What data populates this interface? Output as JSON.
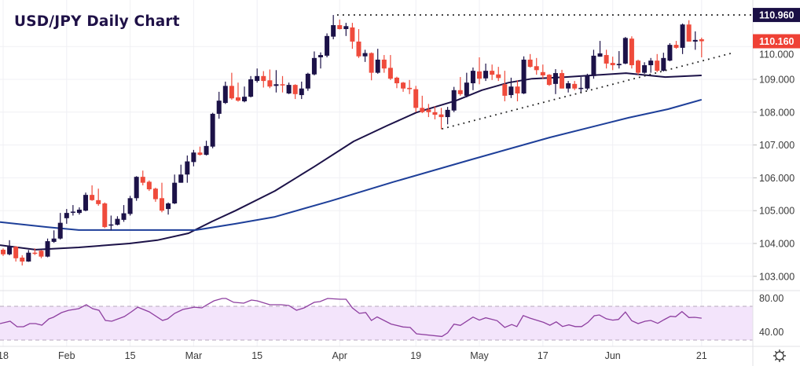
{
  "title": "USD/JPY Daily Chart",
  "colors": {
    "bull": "#1c1248",
    "bear": "#ef4b3c",
    "ma_fast": "#1c1248",
    "ma_slow": "#1e3f99",
    "rsi_line": "#8e3fa0",
    "rsi_fill": "#f3e4fb",
    "rsi_band": "#b7a9bd",
    "high_tag": "#1a0f45",
    "last_tag": "#ef4135",
    "grid": "#f0f0f4"
  },
  "chart_data": {
    "type": "candlestick",
    "title": "USD/JPY Daily Chart",
    "ylim": [
      102.33,
      111.42
    ],
    "y_ticks": [
      "103.000",
      "104.000",
      "105.000",
      "106.000",
      "107.000",
      "108.000",
      "109.000",
      "110.000"
    ],
    "y_tick_values": [
      103,
      104,
      105,
      106,
      107,
      108,
      109,
      110
    ],
    "x_ticks": [
      {
        "label": "18",
        "candle_index": 0
      },
      {
        "label": "Feb",
        "candle_index": 10
      },
      {
        "label": "15",
        "candle_index": 20
      },
      {
        "label": "Mar",
        "candle_index": 30
      },
      {
        "label": "15",
        "candle_index": 40
      },
      {
        "label": "Apr",
        "candle_index": 53
      },
      {
        "label": "19",
        "candle_index": 65
      },
      {
        "label": "May",
        "candle_index": 75
      },
      {
        "label": "17",
        "candle_index": 85
      },
      {
        "label": "Jun",
        "candle_index": 96
      },
      {
        "label": "21",
        "candle_index": 110
      }
    ],
    "ohlc_fields": [
      "open",
      "high",
      "low",
      "close"
    ],
    "candles": [
      [
        103.81,
        103.85,
        103.62,
        103.67
      ],
      [
        103.67,
        104.1,
        103.64,
        103.9
      ],
      [
        103.9,
        103.92,
        103.45,
        103.55
      ],
      [
        103.57,
        103.64,
        103.33,
        103.45
      ],
      [
        103.45,
        103.8,
        103.44,
        103.72
      ],
      [
        103.72,
        103.85,
        103.65,
        103.7
      ],
      [
        103.78,
        103.8,
        103.55,
        103.6
      ],
      [
        103.6,
        104.15,
        103.58,
        104.07
      ],
      [
        104.05,
        104.4,
        104.02,
        104.15
      ],
      [
        104.15,
        104.93,
        104.12,
        104.63
      ],
      [
        104.77,
        105.05,
        104.6,
        104.93
      ],
      [
        104.95,
        105.17,
        104.85,
        104.97
      ],
      [
        104.93,
        105.1,
        104.88,
        105.03
      ],
      [
        105.0,
        105.55,
        104.98,
        105.48
      ],
      [
        105.48,
        105.77,
        105.3,
        105.32
      ],
      [
        105.32,
        105.67,
        105.15,
        105.2
      ],
      [
        105.22,
        105.25,
        104.47,
        104.5
      ],
      [
        104.55,
        104.85,
        104.4,
        104.58
      ],
      [
        104.57,
        104.83,
        104.55,
        104.75
      ],
      [
        104.72,
        105.17,
        104.66,
        104.92
      ],
      [
        104.9,
        105.45,
        104.85,
        105.38
      ],
      [
        105.38,
        106.05,
        105.3,
        106.03
      ],
      [
        106.03,
        106.22,
        105.77,
        105.85
      ],
      [
        105.88,
        105.92,
        105.6,
        105.65
      ],
      [
        105.67,
        105.7,
        105.27,
        105.35
      ],
      [
        105.38,
        105.85,
        104.95,
        105.0
      ],
      [
        105.05,
        105.25,
        104.88,
        105.22
      ],
      [
        105.22,
        106.1,
        105.2,
        105.85
      ],
      [
        105.85,
        106.4,
        105.85,
        106.1
      ],
      [
        106.1,
        106.68,
        105.85,
        106.5
      ],
      [
        106.48,
        106.85,
        106.35,
        106.77
      ],
      [
        106.77,
        106.95,
        106.68,
        106.7
      ],
      [
        106.7,
        107.13,
        106.68,
        106.97
      ],
      [
        106.95,
        107.98,
        106.9,
        107.95
      ],
      [
        107.95,
        108.62,
        107.8,
        108.35
      ],
      [
        108.28,
        108.93,
        108.25,
        108.8
      ],
      [
        108.8,
        109.2,
        108.38,
        108.42
      ],
      [
        108.45,
        108.9,
        108.32,
        108.35
      ],
      [
        108.33,
        108.78,
        108.3,
        108.47
      ],
      [
        108.47,
        109.1,
        108.45,
        109.0
      ],
      [
        108.95,
        109.33,
        108.9,
        109.1
      ],
      [
        109.1,
        109.25,
        108.75,
        108.95
      ],
      [
        108.97,
        109.3,
        108.73,
        108.78
      ],
      [
        108.8,
        109.28,
        108.6,
        108.85
      ],
      [
        108.85,
        109.1,
        108.6,
        108.83
      ],
      [
        108.57,
        108.9,
        108.55,
        108.83
      ],
      [
        108.83,
        108.85,
        108.4,
        108.55
      ],
      [
        108.52,
        108.93,
        108.4,
        108.72
      ],
      [
        108.72,
        109.2,
        108.65,
        109.17
      ],
      [
        109.15,
        109.85,
        109.12,
        109.65
      ],
      [
        109.67,
        109.82,
        109.33,
        109.74
      ],
      [
        109.72,
        110.4,
        109.67,
        110.32
      ],
      [
        110.3,
        110.96,
        110.22,
        110.65
      ],
      [
        110.65,
        110.82,
        110.52,
        110.53
      ],
      [
        110.53,
        110.72,
        110.32,
        110.62
      ],
      [
        110.58,
        110.72,
        109.93,
        110.15
      ],
      [
        110.15,
        110.53,
        109.65,
        109.7
      ],
      [
        109.7,
        109.9,
        109.53,
        109.8
      ],
      [
        109.8,
        109.82,
        108.97,
        109.2
      ],
      [
        109.2,
        109.93,
        109.17,
        109.6
      ],
      [
        109.6,
        109.74,
        109.2,
        109.33
      ],
      [
        109.35,
        109.74,
        108.98,
        109.02
      ],
      [
        109.05,
        109.08,
        108.73,
        108.88
      ],
      [
        108.9,
        108.92,
        108.62,
        108.72
      ],
      [
        108.74,
        108.98,
        108.55,
        108.7
      ],
      [
        108.7,
        108.8,
        108.0,
        108.13
      ],
      [
        108.13,
        108.5,
        107.97,
        108.0
      ],
      [
        108.08,
        108.25,
        107.85,
        108.0
      ],
      [
        108.0,
        108.18,
        107.78,
        107.92
      ],
      [
        107.93,
        108.13,
        107.48,
        107.85
      ],
      [
        107.85,
        108.16,
        107.63,
        108.07
      ],
      [
        108.05,
        108.77,
        108.0,
        108.67
      ],
      [
        108.67,
        109.07,
        108.5,
        108.55
      ],
      [
        108.5,
        109.2,
        108.45,
        108.9
      ],
      [
        108.88,
        109.36,
        108.67,
        109.26
      ],
      [
        109.24,
        109.67,
        108.85,
        109.02
      ],
      [
        109.03,
        109.48,
        108.95,
        109.26
      ],
      [
        109.26,
        109.45,
        108.98,
        109.14
      ],
      [
        109.15,
        109.38,
        108.95,
        109.04
      ],
      [
        108.85,
        109.26,
        108.33,
        108.5
      ],
      [
        108.52,
        109.05,
        108.43,
        108.78
      ],
      [
        108.78,
        108.97,
        108.33,
        108.57
      ],
      [
        108.57,
        109.7,
        108.55,
        109.6
      ],
      [
        109.6,
        109.77,
        109.36,
        109.38
      ],
      [
        109.4,
        109.65,
        109.14,
        109.28
      ],
      [
        109.22,
        109.45,
        109.02,
        109.12
      ],
      [
        109.14,
        109.16,
        108.8,
        108.83
      ],
      [
        108.86,
        109.31,
        108.55,
        109.19
      ],
      [
        109.19,
        109.29,
        108.72,
        108.72
      ],
      [
        108.72,
        108.95,
        108.6,
        108.88
      ],
      [
        108.86,
        108.95,
        108.67,
        108.72
      ],
      [
        108.72,
        109.07,
        108.57,
        108.74
      ],
      [
        108.72,
        109.17,
        108.67,
        109.1
      ],
      [
        109.1,
        109.9,
        109.02,
        109.72
      ],
      [
        109.69,
        110.17,
        109.69,
        109.79
      ],
      [
        109.74,
        109.9,
        109.33,
        109.48
      ],
      [
        109.5,
        109.69,
        109.28,
        109.43
      ],
      [
        109.43,
        109.86,
        109.33,
        109.47
      ],
      [
        109.48,
        110.29,
        109.46,
        110.26
      ],
      [
        110.24,
        110.31,
        109.33,
        109.43
      ],
      [
        109.57,
        109.6,
        109.14,
        109.2
      ],
      [
        109.2,
        109.52,
        109.17,
        109.43
      ],
      [
        109.43,
        109.65,
        109.2,
        109.57
      ],
      [
        109.57,
        109.77,
        109.22,
        109.26
      ],
      [
        109.26,
        109.81,
        109.24,
        109.65
      ],
      [
        109.57,
        110.1,
        109.55,
        110.05
      ],
      [
        110.05,
        110.17,
        109.93,
        109.96
      ],
      [
        109.96,
        110.7,
        109.77,
        110.67
      ],
      [
        110.67,
        110.8,
        110.15,
        110.15
      ],
      [
        110.15,
        110.46,
        109.9,
        110.2
      ],
      [
        110.22,
        110.27,
        109.67,
        110.16
      ]
    ],
    "moving_averages": [
      {
        "name": "fast MA",
        "points": [
          [
            -0.5,
            103.95
          ],
          [
            5.1,
            103.81
          ],
          [
            11.9,
            103.88
          ],
          [
            19.9,
            104.0
          ],
          [
            24.3,
            104.1
          ],
          [
            29.2,
            104.31
          ],
          [
            32.9,
            104.67
          ],
          [
            36.6,
            105.0
          ],
          [
            42.8,
            105.6
          ],
          [
            49.0,
            106.34
          ],
          [
            55.2,
            107.11
          ],
          [
            60.5,
            107.59
          ],
          [
            65.1,
            107.99
          ],
          [
            71.3,
            108.35
          ],
          [
            75.4,
            108.67
          ],
          [
            79.6,
            108.9
          ],
          [
            83.3,
            109.02
          ],
          [
            88.6,
            109.07
          ],
          [
            98.1,
            109.19
          ],
          [
            104.3,
            109.07
          ],
          [
            110.0,
            109.12
          ]
        ]
      },
      {
        "name": "slow MA",
        "points": [
          [
            -0.5,
            104.65
          ],
          [
            6.9,
            104.5
          ],
          [
            11.9,
            104.41
          ],
          [
            30.4,
            104.41
          ],
          [
            36.6,
            104.6
          ],
          [
            42.8,
            104.81
          ],
          [
            51.5,
            105.29
          ],
          [
            61.4,
            105.87
          ],
          [
            73.8,
            106.56
          ],
          [
            86.1,
            107.23
          ],
          [
            98.5,
            107.83
          ],
          [
            104.7,
            108.09
          ],
          [
            110.0,
            108.38
          ]
        ]
      }
    ],
    "resistance_line": {
      "value": 110.96,
      "from_candle": 52.6
    },
    "trendline": {
      "points": [
        [
          69.1,
          107.49
        ],
        [
          114.6,
          109.79
        ]
      ]
    },
    "price_tags": [
      {
        "label": "110.960",
        "value": 110.96,
        "kind": "high"
      },
      {
        "label": "110.160",
        "value": 110.16,
        "kind": "last"
      }
    ],
    "rsi": {
      "ylim_ticks": [
        "80.00",
        "40.00"
      ],
      "tick_values": [
        80,
        40
      ],
      "bands": [
        70,
        30
      ],
      "points": [
        [
          -0.5,
          49.5
        ],
        [
          1.1,
          52.3
        ],
        [
          2.2,
          45.8
        ],
        [
          3.2,
          45.8
        ],
        [
          4.2,
          49.5
        ],
        [
          5.1,
          49.5
        ],
        [
          6.1,
          47.7
        ],
        [
          7.2,
          55.1
        ],
        [
          7.9,
          57
        ],
        [
          9.2,
          62.6
        ],
        [
          10.3,
          65.3
        ],
        [
          11.9,
          67.2
        ],
        [
          13.1,
          71.9
        ],
        [
          14.1,
          67.2
        ],
        [
          15.1,
          65.3
        ],
        [
          16.1,
          53.3
        ],
        [
          17.1,
          52.3
        ],
        [
          19.1,
          57.9
        ],
        [
          20.2,
          63.5
        ],
        [
          21.2,
          69
        ],
        [
          23.0,
          63.5
        ],
        [
          25.1,
          53.3
        ],
        [
          25.9,
          55.1
        ],
        [
          27.0,
          61.6
        ],
        [
          28.3,
          66.3
        ],
        [
          30.1,
          69
        ],
        [
          31.3,
          68.1
        ],
        [
          32.1,
          71.9
        ],
        [
          33.2,
          76.5
        ],
        [
          34.5,
          79.3
        ],
        [
          35.1,
          79.3
        ],
        [
          36.3,
          74.7
        ],
        [
          37.9,
          73.7
        ],
        [
          39.1,
          77.4
        ],
        [
          40.0,
          76.5
        ],
        [
          42.0,
          71.9
        ],
        [
          43.8,
          71.9
        ],
        [
          45.0,
          70.9
        ],
        [
          46.2,
          65.3
        ],
        [
          47.4,
          68.1
        ],
        [
          49.0,
          74.7
        ],
        [
          49.9,
          75.6
        ],
        [
          51.1,
          79.3
        ],
        [
          53.1,
          78.4
        ],
        [
          54.0,
          78.4
        ],
        [
          55.0,
          68.1
        ],
        [
          56.1,
          61.6
        ],
        [
          57.1,
          62.6
        ],
        [
          58.0,
          53.3
        ],
        [
          58.9,
          57.4
        ],
        [
          61.1,
          49
        ],
        [
          63.0,
          45.5
        ],
        [
          64.1,
          45
        ],
        [
          65.1,
          37.4
        ],
        [
          69.1,
          34.3
        ],
        [
          70.0,
          38.6
        ],
        [
          71.0,
          48.9
        ],
        [
          72.0,
          47.4
        ],
        [
          74.0,
          57.3
        ],
        [
          75.0,
          53.6
        ],
        [
          76.0,
          56.4
        ],
        [
          77.8,
          53
        ],
        [
          79.0,
          45
        ],
        [
          80.1,
          48.4
        ],
        [
          80.9,
          46
        ],
        [
          81.9,
          59
        ],
        [
          83.0,
          56
        ],
        [
          84.0,
          53.6
        ],
        [
          85.1,
          51
        ],
        [
          86.1,
          47.6
        ],
        [
          87.1,
          51.6
        ],
        [
          88.1,
          46.1
        ],
        [
          89.1,
          48
        ],
        [
          90.1,
          46
        ],
        [
          91.1,
          46
        ],
        [
          92.1,
          51
        ],
        [
          93.1,
          58.8
        ],
        [
          93.9,
          59.8
        ],
        [
          95.0,
          55.2
        ],
        [
          96.0,
          53.6
        ],
        [
          96.9,
          54.5
        ],
        [
          98.0,
          63.2
        ],
        [
          99.0,
          52.9
        ],
        [
          100.0,
          49.5
        ],
        [
          101.1,
          52.3
        ],
        [
          102.0,
          53.3
        ],
        [
          103.1,
          49.8
        ],
        [
          104.1,
          54.2
        ],
        [
          105.1,
          58.2
        ],
        [
          105.9,
          57.6
        ],
        [
          106.9,
          63.8
        ],
        [
          108.0,
          56.7
        ],
        [
          108.9,
          57
        ],
        [
          110.0,
          56
        ]
      ]
    }
  },
  "settings_icon": "gear-icon"
}
